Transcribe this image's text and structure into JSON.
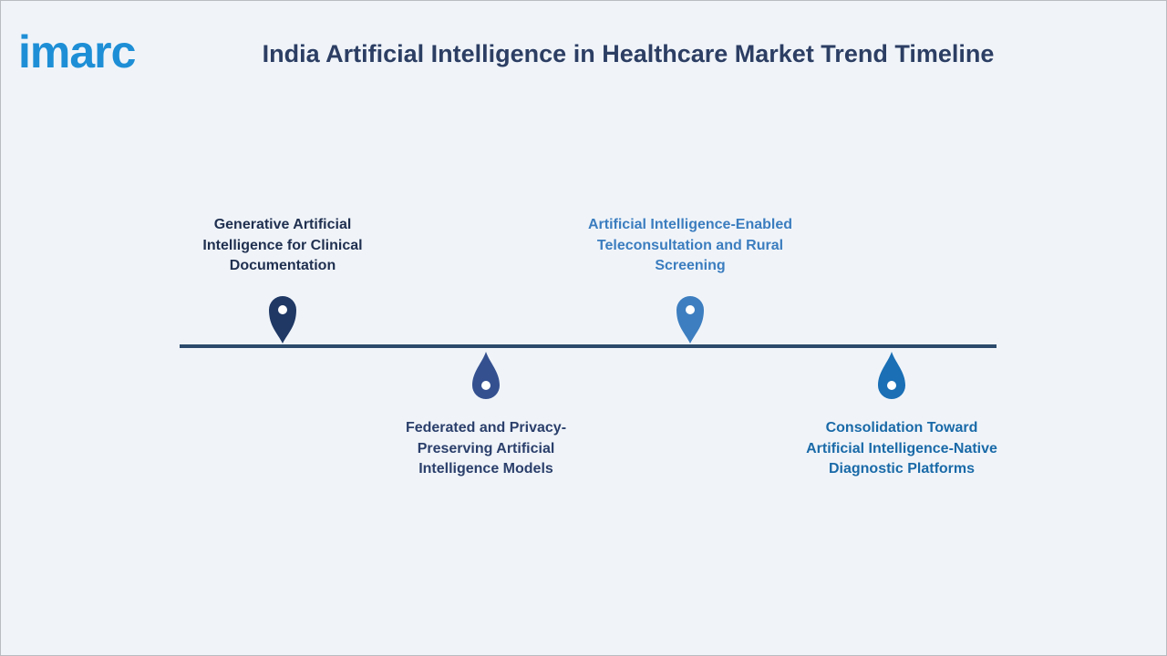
{
  "header": {
    "logo": "imarc",
    "title": "India Artificial Intelligence in Healthcare Market Trend Timeline"
  },
  "timeline": {
    "items": [
      {
        "lines": [
          "Generative Artificial",
          "Intelligence for Clinical",
          "Documentation"
        ]
      },
      {
        "lines": [
          "Federated and Privacy-",
          "Preserving Artificial",
          "Intelligence Models"
        ]
      },
      {
        "lines": [
          "Artificial Intelligence-Enabled",
          "Teleconsultation and Rural",
          "Screening"
        ]
      },
      {
        "lines": [
          "Consolidation Toward",
          "Artificial Intelligence-Native",
          "Diagnostic Platforms"
        ]
      }
    ]
  }
}
